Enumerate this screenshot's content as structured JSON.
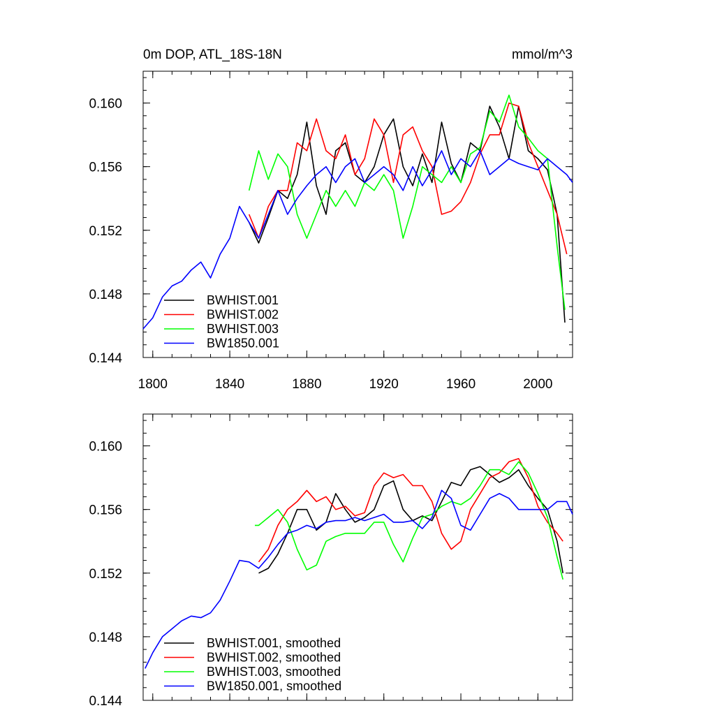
{
  "chart_data": [
    {
      "type": "line",
      "title": "0m DOP, ATL_18S-18N",
      "units": "mmol/m^3",
      "xlabel": "",
      "ylabel": "",
      "xlim": [
        1795,
        2018
      ],
      "ylim": [
        0.144,
        0.162
      ],
      "x_ticks": [
        "1800",
        "1840",
        "1880",
        "1920",
        "1960",
        "2000"
      ],
      "y_ticks": [
        "0.144",
        "0.148",
        "0.152",
        "0.156",
        "0.160"
      ],
      "grid": false,
      "legend_position": "bottom-left",
      "series": [
        {
          "name": "BWHIST.001",
          "color": "#000000",
          "x": [
            1850,
            1855,
            1860,
            1865,
            1870,
            1875,
            1880,
            1885,
            1890,
            1895,
            1900,
            1905,
            1910,
            1915,
            1920,
            1925,
            1930,
            1935,
            1940,
            1945,
            1950,
            1955,
            1960,
            1965,
            1970,
            1975,
            1980,
            1985,
            1990,
            1995,
            2000,
            2005,
            2010,
            2014
          ],
          "y": [
            0.1525,
            0.1512,
            0.1528,
            0.1545,
            0.154,
            0.1555,
            0.1588,
            0.1548,
            0.153,
            0.157,
            0.1575,
            0.1555,
            0.155,
            0.156,
            0.158,
            0.159,
            0.156,
            0.1548,
            0.1568,
            0.155,
            0.1588,
            0.1562,
            0.155,
            0.1575,
            0.157,
            0.1598,
            0.1585,
            0.1565,
            0.1598,
            0.157,
            0.1565,
            0.1558,
            0.153,
            0.1462
          ]
        },
        {
          "name": "BWHIST.002",
          "color": "#ff0000",
          "x": [
            1850,
            1855,
            1860,
            1865,
            1870,
            1875,
            1880,
            1885,
            1890,
            1895,
            1900,
            1905,
            1910,
            1915,
            1920,
            1925,
            1930,
            1935,
            1940,
            1945,
            1950,
            1955,
            1960,
            1965,
            1970,
            1975,
            1980,
            1985,
            1990,
            1995,
            2000,
            2005,
            2010,
            2015
          ],
          "y": [
            0.153,
            0.1515,
            0.1535,
            0.1545,
            0.1545,
            0.1575,
            0.157,
            0.159,
            0.157,
            0.1565,
            0.158,
            0.1555,
            0.1565,
            0.159,
            0.158,
            0.155,
            0.158,
            0.1585,
            0.157,
            0.156,
            0.153,
            0.1532,
            0.1538,
            0.155,
            0.1568,
            0.158,
            0.158,
            0.16,
            0.1598,
            0.1575,
            0.156,
            0.1545,
            0.153,
            0.1505
          ]
        },
        {
          "name": "BWHIST.003",
          "color": "#00ff00",
          "x": [
            1850,
            1855,
            1860,
            1865,
            1870,
            1875,
            1880,
            1885,
            1890,
            1895,
            1900,
            1905,
            1910,
            1915,
            1920,
            1925,
            1930,
            1935,
            1940,
            1945,
            1950,
            1955,
            1960,
            1965,
            1970,
            1975,
            1980,
            1985,
            1990,
            1995,
            2000,
            2005,
            2010,
            2014
          ],
          "y": [
            0.1545,
            0.157,
            0.1552,
            0.1568,
            0.156,
            0.153,
            0.1515,
            0.153,
            0.1545,
            0.1535,
            0.1545,
            0.1535,
            0.155,
            0.1545,
            0.1555,
            0.1545,
            0.1515,
            0.1535,
            0.156,
            0.1555,
            0.155,
            0.156,
            0.155,
            0.1568,
            0.1572,
            0.1595,
            0.1588,
            0.1605,
            0.1585,
            0.1578,
            0.157,
            0.1565,
            0.151,
            0.147
          ]
        },
        {
          "name": "BW1850.001",
          "color": "#0000ff",
          "x": [
            1795,
            1800,
            1805,
            1810,
            1815,
            1820,
            1825,
            1830,
            1835,
            1840,
            1845,
            1850,
            1855,
            1860,
            1865,
            1870,
            1875,
            1880,
            1885,
            1890,
            1895,
            1900,
            1905,
            1910,
            1915,
            1920,
            1925,
            1930,
            1935,
            1940,
            1945,
            1950,
            1955,
            1960,
            1965,
            1970,
            1975,
            1980,
            1985,
            1990,
            1995,
            2000,
            2005,
            2010,
            2015,
            2018
          ],
          "y": [
            0.1458,
            0.1465,
            0.1478,
            0.1485,
            0.1488,
            0.1495,
            0.15,
            0.149,
            0.1505,
            0.1515,
            0.1535,
            0.1525,
            0.1515,
            0.153,
            0.1545,
            0.153,
            0.154,
            0.1548,
            0.1555,
            0.156,
            0.155,
            0.156,
            0.1565,
            0.155,
            0.1555,
            0.156,
            0.1555,
            0.1545,
            0.156,
            0.1548,
            0.1558,
            0.157,
            0.1555,
            0.1565,
            0.156,
            0.157,
            0.1555,
            0.156,
            0.1565,
            0.1562,
            0.156,
            0.1558,
            0.1565,
            0.156,
            0.1555,
            0.155
          ]
        }
      ]
    },
    {
      "type": "line",
      "title": "",
      "xlabel": "",
      "ylabel": "",
      "xlim": [
        1795,
        2018
      ],
      "ylim": [
        0.144,
        0.162
      ],
      "y_ticks": [
        "0.144",
        "0.148",
        "0.152",
        "0.156",
        "0.160"
      ],
      "grid": false,
      "legend_position": "bottom-left",
      "series": [
        {
          "name": "BWHIST.001, smoothed",
          "color": "#000000",
          "x": [
            1855,
            1860,
            1865,
            1870,
            1875,
            1880,
            1885,
            1890,
            1895,
            1900,
            1905,
            1910,
            1915,
            1920,
            1925,
            1930,
            1935,
            1940,
            1945,
            1950,
            1955,
            1960,
            1965,
            1970,
            1975,
            1980,
            1985,
            1990,
            1995,
            2000,
            2005,
            2010,
            2013
          ],
          "y": [
            0.152,
            0.1523,
            0.1532,
            0.1545,
            0.156,
            0.156,
            0.1547,
            0.1552,
            0.157,
            0.156,
            0.1552,
            0.1555,
            0.156,
            0.1575,
            0.1578,
            0.156,
            0.1553,
            0.1556,
            0.1553,
            0.1565,
            0.1577,
            0.1575,
            0.1585,
            0.1587,
            0.1582,
            0.1577,
            0.158,
            0.1585,
            0.1575,
            0.1567,
            0.156,
            0.154,
            0.152
          ]
        },
        {
          "name": "BWHIST.002, smoothed",
          "color": "#ff0000",
          "x": [
            1855,
            1860,
            1865,
            1870,
            1875,
            1880,
            1885,
            1890,
            1895,
            1900,
            1905,
            1910,
            1915,
            1920,
            1925,
            1930,
            1935,
            1940,
            1945,
            1950,
            1955,
            1960,
            1965,
            1970,
            1975,
            1980,
            1985,
            1990,
            1995,
            2000,
            2005,
            2010,
            2013
          ],
          "y": [
            0.1527,
            0.1535,
            0.155,
            0.156,
            0.1565,
            0.1572,
            0.1565,
            0.1568,
            0.156,
            0.1562,
            0.1556,
            0.1558,
            0.1575,
            0.1583,
            0.158,
            0.1582,
            0.1575,
            0.1575,
            0.1565,
            0.1545,
            0.1535,
            0.154,
            0.156,
            0.157,
            0.158,
            0.1583,
            0.159,
            0.1592,
            0.158,
            0.1562,
            0.1552,
            0.1545,
            0.154
          ]
        },
        {
          "name": "BWHIST.003, smoothed",
          "color": "#00ff00",
          "x": [
            1853,
            1855,
            1860,
            1865,
            1870,
            1875,
            1880,
            1885,
            1890,
            1895,
            1900,
            1905,
            1910,
            1915,
            1920,
            1925,
            1930,
            1935,
            1940,
            1945,
            1950,
            1955,
            1960,
            1965,
            1970,
            1975,
            1980,
            1985,
            1990,
            1995,
            2000,
            2005,
            2010,
            2013
          ],
          "y": [
            0.155,
            0.155,
            0.1555,
            0.156,
            0.1552,
            0.1535,
            0.1522,
            0.1525,
            0.154,
            0.1543,
            0.1545,
            0.1545,
            0.1545,
            0.1552,
            0.1552,
            0.1538,
            0.1527,
            0.1542,
            0.1555,
            0.1557,
            0.1562,
            0.1565,
            0.1563,
            0.1567,
            0.1575,
            0.1585,
            0.1585,
            0.1582,
            0.159,
            0.1583,
            0.157,
            0.1555,
            0.153,
            0.1516
          ]
        },
        {
          "name": "BW1850.001, smoothed",
          "color": "#0000ff",
          "x": [
            1796,
            1800,
            1805,
            1810,
            1815,
            1820,
            1825,
            1830,
            1835,
            1840,
            1845,
            1850,
            1855,
            1860,
            1865,
            1870,
            1875,
            1880,
            1885,
            1890,
            1895,
            1900,
            1905,
            1910,
            1915,
            1920,
            1925,
            1930,
            1935,
            1940,
            1945,
            1950,
            1955,
            1960,
            1965,
            1970,
            1975,
            1980,
            1985,
            1990,
            1995,
            2000,
            2005,
            2010,
            2015,
            2018
          ],
          "y": [
            0.146,
            0.147,
            0.148,
            0.1485,
            0.149,
            0.1493,
            0.1492,
            0.1495,
            0.1503,
            0.1515,
            0.1528,
            0.1527,
            0.1523,
            0.153,
            0.1538,
            0.1545,
            0.1547,
            0.155,
            0.1548,
            0.1552,
            0.1553,
            0.1553,
            0.1555,
            0.1553,
            0.1555,
            0.1557,
            0.1552,
            0.1552,
            0.1553,
            0.1548,
            0.1555,
            0.1572,
            0.1567,
            0.155,
            0.1547,
            0.1557,
            0.1567,
            0.157,
            0.1567,
            0.156,
            0.156,
            0.156,
            0.156,
            0.1565,
            0.1565,
            0.1557
          ]
        }
      ]
    }
  ]
}
